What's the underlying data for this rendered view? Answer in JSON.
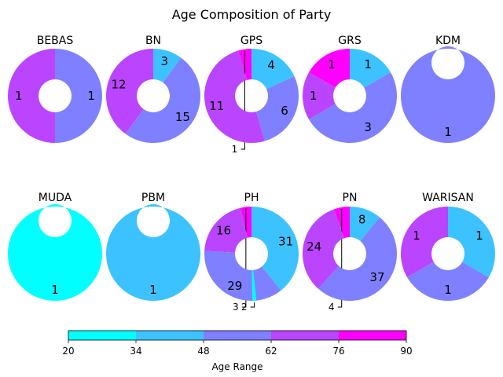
{
  "chart_data": {
    "type": "pie",
    "variant": "donut-grid",
    "title": "Age Composition of Party",
    "colorbar": {
      "label": "Age Range",
      "ticks": [
        20,
        34,
        48,
        62,
        76,
        90
      ],
      "colors": [
        "#00ffff",
        "#3cc3ff",
        "#7f80ff",
        "#bb44ff",
        "#ff00ff"
      ]
    },
    "bins": [
      "20-34",
      "34-48",
      "48-62",
      "62-76",
      "76-90"
    ],
    "parties": [
      {
        "name": "BEBAS",
        "values": [
          0,
          0,
          1,
          1,
          0
        ]
      },
      {
        "name": "BN",
        "values": [
          0,
          3,
          15,
          12,
          0
        ]
      },
      {
        "name": "GPS",
        "values": [
          0,
          4,
          6,
          11,
          1
        ]
      },
      {
        "name": "GRS",
        "values": [
          0,
          1,
          3,
          1,
          1
        ]
      },
      {
        "name": "KDM",
        "values": [
          0,
          0,
          1,
          0,
          0
        ]
      },
      {
        "name": "MUDA",
        "values": [
          1,
          0,
          0,
          0,
          0
        ]
      },
      {
        "name": "PBM",
        "values": [
          0,
          1,
          0,
          0,
          0
        ]
      },
      {
        "name": "PH",
        "values": [
          0,
          31,
          29,
          16,
          3
        ],
        "unlabeled_small": [
          2
        ]
      },
      {
        "name": "PN",
        "values": [
          0,
          8,
          37,
          24,
          4
        ]
      },
      {
        "name": "WARISAN",
        "values": [
          0,
          1,
          1,
          1,
          0
        ]
      }
    ]
  }
}
